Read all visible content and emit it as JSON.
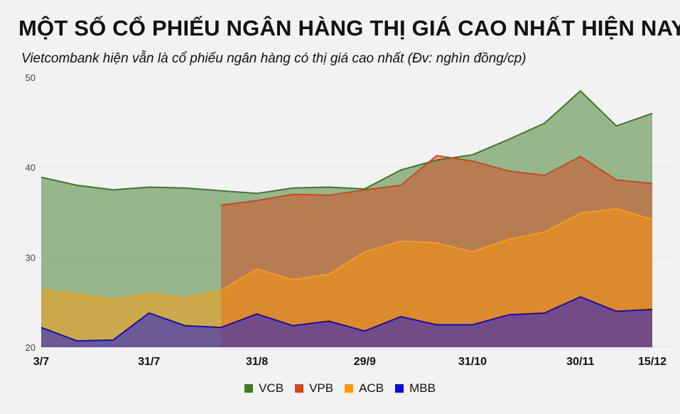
{
  "chart_data": {
    "type": "area",
    "title": "MỘT SỐ CỔ PHIẾU NGÂN HÀNG THỊ GIÁ CAO NHẤT HIỆN NAY",
    "subtitle": "Vietcombank hiện vẫn là cổ phiếu ngân hàng có thị giá cao nhất (Đv: nghìn đồng/cp)",
    "categories": [
      "3/7",
      "",
      "",
      "31/7",
      "",
      "",
      "31/8",
      "",
      "",
      "29/9",
      "",
      "",
      "31/10",
      "",
      "",
      "30/11",
      "",
      "15/12"
    ],
    "ylim": [
      20,
      50
    ],
    "yticks": [
      "20",
      "30",
      "40",
      "50"
    ],
    "grid": true,
    "legend_position": "bottom",
    "series": [
      {
        "name": "VCB",
        "color": "#3c7a24",
        "values": [
          38.9,
          38.0,
          37.5,
          37.8,
          37.7,
          37.4,
          37.1,
          37.7,
          37.8,
          37.6,
          39.7,
          40.8,
          41.4,
          43.1,
          44.9,
          48.5,
          44.6,
          46.0
        ]
      },
      {
        "name": "VPB",
        "color": "#d5441c",
        "values": [
          null,
          null,
          null,
          null,
          null,
          35.8,
          36.3,
          37.0,
          36.9,
          37.5,
          38.0,
          41.3,
          40.7,
          39.6,
          39.1,
          41.2,
          38.6,
          38.2
        ]
      },
      {
        "name": "ACB",
        "color": "#ff9a0a",
        "values": [
          26.4,
          25.9,
          25.3,
          26.0,
          25.5,
          26.3,
          28.7,
          27.5,
          28.1,
          30.6,
          31.8,
          31.6,
          30.6,
          32.0,
          32.8,
          34.9,
          35.4,
          34.2
        ]
      },
      {
        "name": "MBB",
        "color": "#0b0bdc",
        "values": [
          22.2,
          20.7,
          20.8,
          23.8,
          22.4,
          22.2,
          23.7,
          22.4,
          22.9,
          21.8,
          23.4,
          22.5,
          22.5,
          23.6,
          23.8,
          25.6,
          24.0,
          24.2
        ]
      }
    ]
  }
}
